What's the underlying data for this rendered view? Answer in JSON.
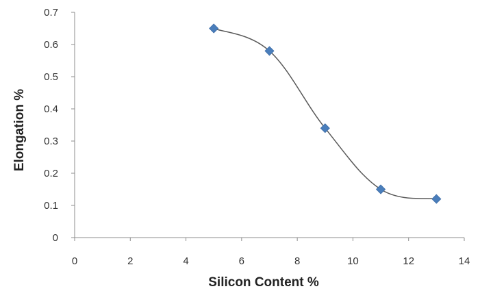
{
  "chart_data": {
    "type": "line",
    "title": "",
    "xlabel": "Silicon Content %",
    "ylabel": "Elongation %",
    "xlim": [
      0,
      14
    ],
    "ylim": [
      0,
      0.7
    ],
    "x_ticks": [
      0,
      2,
      4,
      6,
      8,
      10,
      12,
      14
    ],
    "y_ticks": [
      0,
      0.1,
      0.2,
      0.3,
      0.4,
      0.5,
      0.6,
      0.7
    ],
    "grid": false,
    "legend": "none",
    "series": [
      {
        "x": [
          5,
          7,
          9,
          11,
          13
        ],
        "values": [
          0.65,
          0.58,
          0.34,
          0.15,
          0.12
        ],
        "line_color": "#5a5a5a",
        "marker": "diamond",
        "marker_color": "#4a7ebb"
      }
    ],
    "axis_color": "#8c8c8c"
  }
}
